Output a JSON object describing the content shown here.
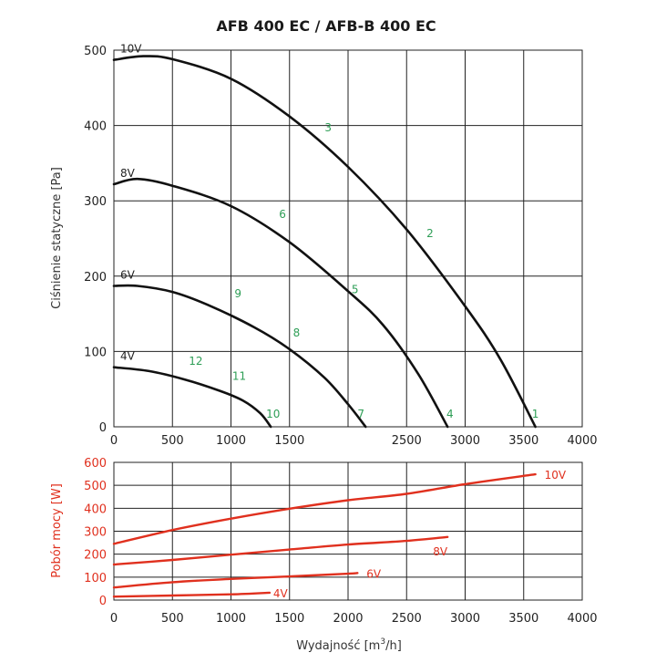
{
  "title": "AFB 400 EC / AFB-B 400 EC",
  "x_label_prefix": "Wydajność [m",
  "x_label_sup": "3",
  "x_label_suffix": "/h]",
  "chart_data": [
    {
      "type": "line",
      "title": "AFB 400 EC / AFB-B 400 EC",
      "xlabel": "Wydajność [m3/h]",
      "ylabel": "Ciśnienie statyczne [Pa]",
      "xlim": [
        0,
        4000
      ],
      "ylim": [
        0,
        500
      ],
      "grid": true,
      "x_ticks": [
        0,
        500,
        1000,
        1500,
        2500,
        3000,
        3500,
        4000
      ],
      "x_gridlines": [
        500,
        1000,
        1500,
        2000,
        2500,
        3000,
        3500,
        4000
      ],
      "y_ticks": [
        0,
        100,
        200,
        300,
        400,
        500
      ],
      "series": [
        {
          "name": "10V",
          "points": [
            [
              0,
              487
            ],
            [
              250,
              492
            ],
            [
              500,
              488
            ],
            [
              1000,
              462
            ],
            [
              1500,
              412
            ],
            [
              2000,
              345
            ],
            [
              2500,
              262
            ],
            [
              3000,
              160
            ],
            [
              3300,
              90
            ],
            [
              3600,
              0
            ]
          ]
        },
        {
          "name": "8V",
          "points": [
            [
              0,
              322
            ],
            [
              200,
              329
            ],
            [
              500,
              320
            ],
            [
              1000,
              293
            ],
            [
              1500,
              245
            ],
            [
              2000,
              180
            ],
            [
              2300,
              135
            ],
            [
              2600,
              70
            ],
            [
              2850,
              0
            ]
          ]
        },
        {
          "name": "6V",
          "points": [
            [
              0,
              187
            ],
            [
              200,
              187
            ],
            [
              500,
              179
            ],
            [
              800,
              162
            ],
            [
              1200,
              132
            ],
            [
              1500,
              103
            ],
            [
              1800,
              65
            ],
            [
              2000,
              30
            ],
            [
              2150,
              0
            ]
          ]
        },
        {
          "name": "4V",
          "points": [
            [
              0,
              79
            ],
            [
              300,
              74
            ],
            [
              600,
              63
            ],
            [
              900,
              48
            ],
            [
              1100,
              35
            ],
            [
              1250,
              18
            ],
            [
              1340,
              0
            ]
          ]
        }
      ],
      "operating_points": [
        {
          "label": "1",
          "x": 3600,
          "y": 0
        },
        {
          "label": "2",
          "x": 2700,
          "y": 240
        },
        {
          "label": "3",
          "x": 1830,
          "y": 380
        },
        {
          "label": "4",
          "x": 2870,
          "y": 0
        },
        {
          "label": "5",
          "x": 2060,
          "y": 165
        },
        {
          "label": "6",
          "x": 1440,
          "y": 265
        },
        {
          "label": "7",
          "x": 2110,
          "y": 0
        },
        {
          "label": "8",
          "x": 1560,
          "y": 108
        },
        {
          "label": "9",
          "x": 1060,
          "y": 160
        },
        {
          "label": "10",
          "x": 1360,
          "y": 0
        },
        {
          "label": "11",
          "x": 1070,
          "y": 50
        },
        {
          "label": "12",
          "x": 700,
          "y": 70
        }
      ]
    },
    {
      "type": "line",
      "xlabel": "Wydajność [m3/h]",
      "ylabel": "Pobór mocy [W]",
      "xlim": [
        0,
        4000
      ],
      "ylim": [
        0,
        600
      ],
      "grid": true,
      "x_ticks": [
        0,
        500,
        1000,
        1500,
        2000,
        2500,
        3000,
        3500,
        4000
      ],
      "y_ticks": [
        0,
        100,
        200,
        300,
        400,
        500,
        600
      ],
      "color": "#e0301e",
      "series": [
        {
          "name": "10V",
          "points": [
            [
              0,
              245
            ],
            [
              500,
              305
            ],
            [
              1000,
              355
            ],
            [
              1500,
              398
            ],
            [
              2000,
              435
            ],
            [
              2500,
              463
            ],
            [
              3000,
              505
            ],
            [
              3600,
              548
            ]
          ]
        },
        {
          "name": "8V",
          "points": [
            [
              0,
              155
            ],
            [
              500,
              175
            ],
            [
              1000,
              198
            ],
            [
              1500,
              220
            ],
            [
              2000,
              242
            ],
            [
              2500,
              258
            ],
            [
              2850,
              275
            ]
          ]
        },
        {
          "name": "6V",
          "points": [
            [
              0,
              55
            ],
            [
              500,
              78
            ],
            [
              1000,
              92
            ],
            [
              1500,
              103
            ],
            [
              2000,
              115
            ],
            [
              2080,
              118
            ]
          ]
        },
        {
          "name": "4V",
          "points": [
            [
              0,
              15
            ],
            [
              500,
              20
            ],
            [
              1000,
              25
            ],
            [
              1330,
              32
            ]
          ]
        }
      ]
    }
  ]
}
